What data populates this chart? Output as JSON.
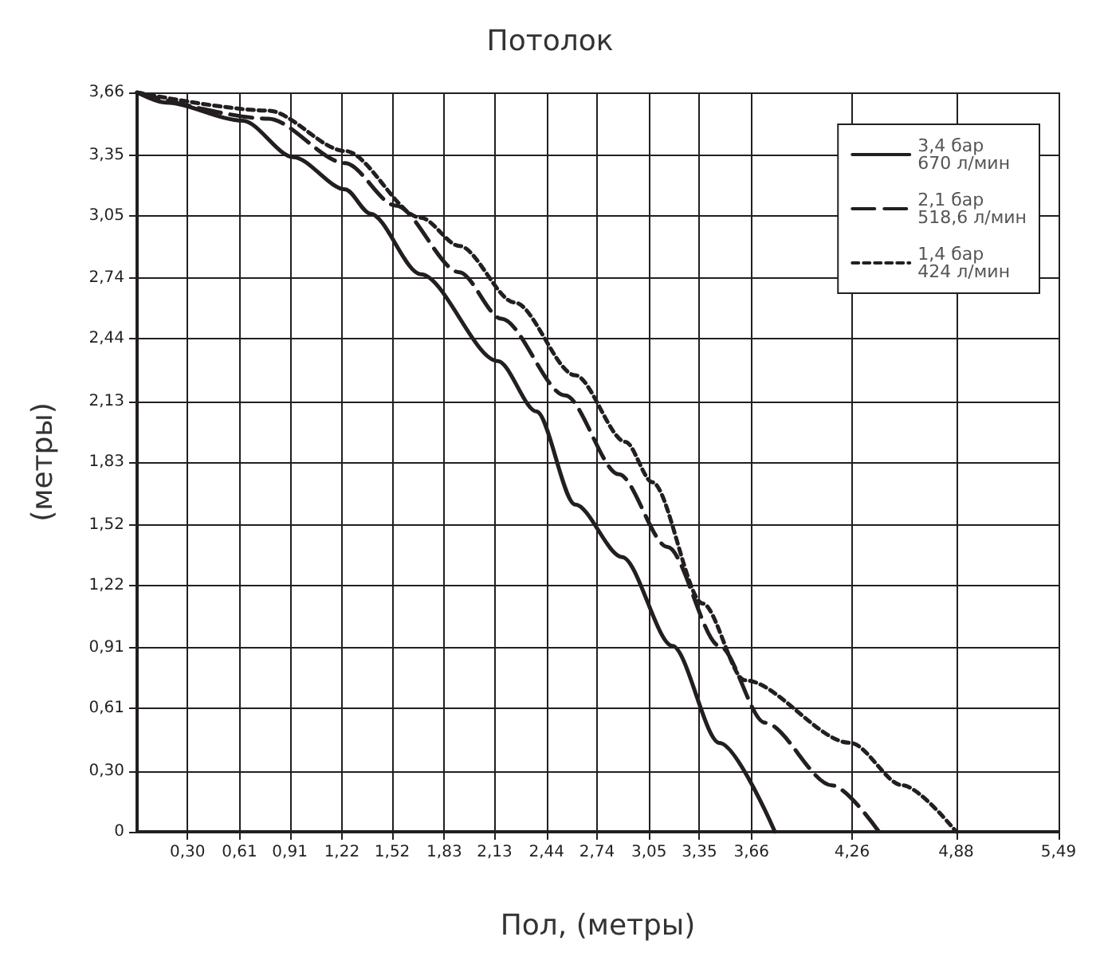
{
  "chart_data": {
    "type": "line",
    "title": "Потолок",
    "xlabel": "Пол, (метры)",
    "ylabel": "(метры)",
    "xlim": [
      0,
      5.49
    ],
    "xticks": [
      {
        "value": 0.3,
        "label": "0,30"
      },
      {
        "value": 0.61,
        "label": "0,61"
      },
      {
        "value": 0.91,
        "label": "0,91"
      },
      {
        "value": 1.22,
        "label": "1,22"
      },
      {
        "value": 1.52,
        "label": "1,52"
      },
      {
        "value": 1.83,
        "label": "1,83"
      },
      {
        "value": 2.13,
        "label": "2,13"
      },
      {
        "value": 2.44,
        "label": "2,44"
      },
      {
        "value": 2.74,
        "label": "2,74"
      },
      {
        "value": 3.05,
        "label": "3,05"
      },
      {
        "value": 3.35,
        "label": "3,35"
      },
      {
        "value": 3.66,
        "label": "3,66"
      },
      {
        "value": 4.26,
        "label": "4,26"
      },
      {
        "value": 4.88,
        "label": "4,88"
      },
      {
        "value": 5.49,
        "label": "5,49"
      }
    ],
    "ylim": [
      0,
      3.66
    ],
    "yticks": [
      0,
      {
        "value": 0.3,
        "label": "0,30"
      },
      {
        "value": 0.61,
        "label": "0,61"
      },
      {
        "value": 0.91,
        "label": "0,91"
      },
      {
        "value": 1.22,
        "label": "1,22"
      },
      {
        "value": 1.52,
        "label": "1,52"
      },
      {
        "value": 1.83,
        "label": "1,83"
      },
      {
        "value": 2.13,
        "label": "2,13"
      },
      {
        "value": 2.44,
        "label": "2,44"
      },
      {
        "value": 2.74,
        "label": "2,74"
      },
      {
        "value": 3.05,
        "label": "3,05"
      },
      {
        "value": 3.35,
        "label": "3,35"
      },
      {
        "value": 3.66,
        "label": "3,66"
      }
    ],
    "grid": true,
    "legend": "top right",
    "marker": "none",
    "series": [
      {
        "name": "3,4 бар\n670 л/мин",
        "color": "#231f20",
        "line_style": "solid",
        "x": [
          0,
          0.17,
          0.63,
          0.93,
          1.24,
          1.39,
          1.69,
          2.15,
          2.38,
          2.61,
          2.89,
          3.19,
          3.47,
          3.8
        ],
        "values": [
          3.66,
          3.61,
          3.52,
          3.34,
          3.18,
          3.06,
          2.76,
          2.33,
          2.08,
          1.62,
          1.36,
          0.92,
          0.44,
          0
        ]
      },
      {
        "name": "2,1 бар\n518,6 л/мин",
        "color": "#231f20",
        "line_style": "dashed",
        "x": [
          0,
          0.78,
          1.24,
          1.54,
          1.92,
          2.17,
          2.55,
          2.87,
          3.16,
          3.47,
          3.74,
          4.14,
          4.42
        ],
        "values": [
          3.66,
          3.53,
          3.31,
          3.1,
          2.77,
          2.54,
          2.16,
          1.77,
          1.41,
          0.92,
          0.54,
          0.23,
          0
        ]
      },
      {
        "name": "1,4 бар\n424 л/мин",
        "color": "#231f20",
        "line_style": "dotted",
        "x": [
          0,
          0.78,
          1.24,
          1.69,
          1.92,
          2.25,
          2.61,
          2.91,
          3.07,
          3.37,
          3.62,
          4.25,
          4.56,
          4.88
        ],
        "values": [
          3.66,
          3.57,
          3.37,
          3.04,
          2.9,
          2.62,
          2.26,
          1.93,
          1.73,
          1.13,
          0.75,
          0.44,
          0.23,
          0
        ]
      }
    ]
  }
}
